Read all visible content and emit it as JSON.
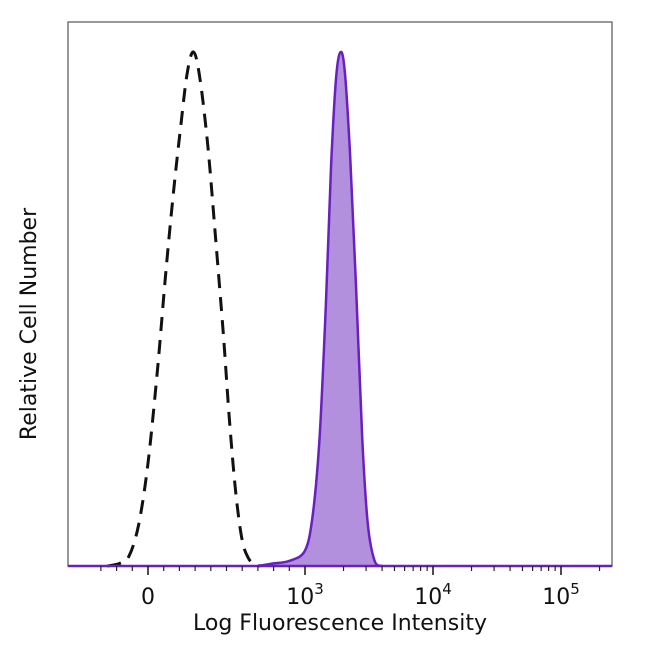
{
  "chart_data": {
    "type": "area",
    "xlabel": "Log Fluorescence Intensity",
    "ylabel": "Relative Cell Number",
    "x_scale": "biexponential",
    "xlim": [
      -400,
      200000
    ],
    "ylim": [
      0,
      100
    ],
    "grid": false,
    "legend": "none",
    "x_ticks": [
      {
        "value": 0,
        "base": "0",
        "exp": ""
      },
      {
        "value": 1000,
        "base": "10",
        "exp": "3"
      },
      {
        "value": 10000,
        "base": "10",
        "exp": "4"
      },
      {
        "value": 100000,
        "base": "10",
        "exp": "5"
      }
    ],
    "series": [
      {
        "style": "dashed",
        "color": "#111111",
        "fill": "none",
        "x": [
          -260,
          -180,
          -120,
          -60,
          0,
          60,
          110,
          160,
          210,
          250,
          290,
          330,
          380,
          430,
          480,
          520,
          560,
          600,
          640,
          680,
          720
        ],
        "y": [
          0,
          0.5,
          2,
          8,
          20,
          38,
          56,
          72,
          86,
          96,
          100,
          95,
          82,
          64,
          45,
          28,
          14,
          5,
          1.5,
          0.3,
          0
        ]
      },
      {
        "style": "solid",
        "color": "#6a1fbf",
        "fill": "#b290dd",
        "x": [
          700,
          800,
          900,
          1000,
          1150,
          1300,
          1450,
          1600,
          1750,
          1900,
          2050,
          2250,
          2500,
          2800,
          3100,
          3500,
          4000
        ],
        "y": [
          0,
          0.5,
          1,
          3,
          10,
          25,
          50,
          78,
          95,
          100,
          96,
          80,
          55,
          25,
          8,
          1,
          0
        ]
      }
    ]
  }
}
